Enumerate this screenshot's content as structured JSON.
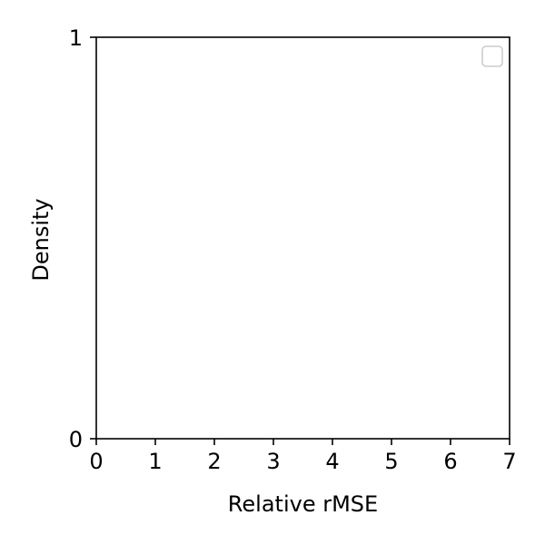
{
  "chart_data": {
    "type": "line",
    "xlabel": "Relative rMSE",
    "ylabel": "Density",
    "xlim": [
      0,
      7
    ],
    "ylim": [
      0,
      1
    ],
    "xticks": [
      0,
      1,
      2,
      3,
      4,
      5,
      6,
      7
    ],
    "xtick_labels": [
      "0",
      "1",
      "2",
      "3",
      "4",
      "5",
      "6",
      "7"
    ],
    "yticks": [
      0,
      1
    ],
    "ytick_labels": [
      "0",
      "1"
    ],
    "series": [],
    "grid": false,
    "legend": {
      "placement": "top-right",
      "entries": []
    }
  },
  "colors": {
    "axis": "#000000",
    "legend_border": "#cccccc",
    "background": "#ffffff"
  }
}
